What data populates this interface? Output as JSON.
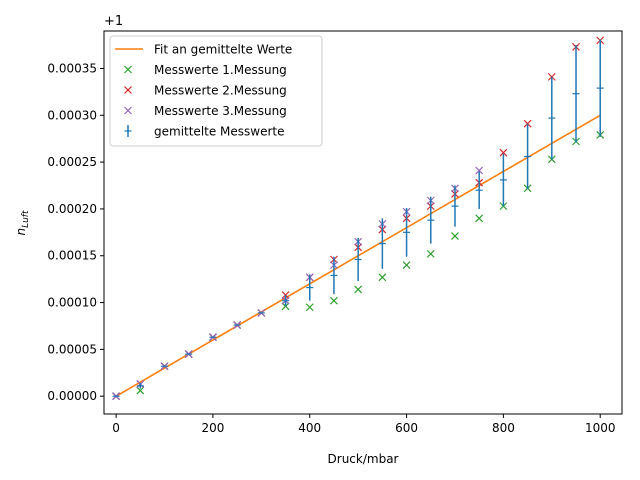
{
  "chart_data": {
    "type": "scatter",
    "title": "",
    "xlabel": "Druck/mbar",
    "ylabel_base": "n",
    "ylabel_sub": "Luft",
    "y_offset_label": "+1",
    "xlim": [
      -25,
      1045
    ],
    "ylim": [
      -1.9e-05,
      0.00039
    ],
    "x_ticks": [
      0,
      200,
      400,
      600,
      800,
      1000
    ],
    "x_tick_labels": [
      "0",
      "200",
      "400",
      "600",
      "800",
      "1000"
    ],
    "y_ticks": [
      0,
      5e-05,
      0.0001,
      0.00015,
      0.0002,
      0.00025,
      0.0003,
      0.00035
    ],
    "y_tick_labels": [
      "0.00000",
      "0.00005",
      "0.00010",
      "0.00015",
      "0.00020",
      "0.00025",
      "0.00030",
      "0.00035"
    ],
    "grid": false,
    "legend_position": "top-left",
    "fit": {
      "name": "Fit an gemittelte Werte",
      "color": "#ff7f0e",
      "x": [
        0,
        1000
      ],
      "y": [
        0.0,
        0.0003
      ]
    },
    "series": [
      {
        "name": "Messwerte 1.Messung",
        "color": "#2ca02c",
        "marker": "x",
        "x": [
          0,
          50,
          100,
          150,
          200,
          250,
          300,
          350,
          400,
          450,
          500,
          550,
          600,
          650,
          700,
          750,
          800,
          850,
          900,
          950,
          1000
        ],
        "y": [
          0.0,
          6e-06,
          3.2e-05,
          4.5e-05,
          6.3e-05,
          7.6e-05,
          8.9e-05,
          9.6e-05,
          9.5e-05,
          0.000102,
          0.000114,
          0.000127,
          0.00014,
          0.000152,
          0.000171,
          0.00019,
          0.000203,
          0.000222,
          0.000253,
          0.000272,
          0.000279
        ]
      },
      {
        "name": "Messwerte 2.Messung",
        "color": "#d62728",
        "marker": "x",
        "x": [
          0,
          50,
          100,
          150,
          200,
          250,
          300,
          350,
          400,
          450,
          500,
          550,
          600,
          650,
          700,
          750,
          800,
          850,
          900,
          950,
          1000
        ],
        "y": [
          0.0,
          1.3e-05,
          3.2e-05,
          4.5e-05,
          6.3e-05,
          7.6e-05,
          8.9e-05,
          0.000108,
          0.000127,
          0.000146,
          0.000159,
          0.000178,
          0.00019,
          0.000203,
          0.000216,
          0.000228,
          0.00026,
          0.000291,
          0.000341,
          0.000373,
          0.00038
        ]
      },
      {
        "name": "Messwerte 3.Messung",
        "color": "#9467bd",
        "marker": "x",
        "x": [
          0,
          50,
          100,
          150,
          200,
          250,
          300,
          350,
          400,
          450,
          500,
          550,
          600,
          650,
          700,
          750
        ],
        "y": [
          0.0,
          1.3e-05,
          3.2e-05,
          4.5e-05,
          6.3e-05,
          7.6e-05,
          8.9e-05,
          0.000102,
          0.000127,
          0.00014,
          0.000165,
          0.000184,
          0.000197,
          0.000209,
          0.000222,
          0.000241
        ]
      },
      {
        "name": "gemittelte Messwerte",
        "color": "#1f77b4",
        "marker": "errorbar",
        "x": [
          0,
          50,
          100,
          150,
          200,
          250,
          300,
          350,
          400,
          450,
          500,
          550,
          600,
          650,
          700,
          750,
          800,
          850,
          900,
          950,
          1000
        ],
        "y": [
          0.0,
          1.1e-05,
          3.2e-05,
          4.5e-05,
          6.3e-05,
          7.6e-05,
          8.9e-05,
          0.000102,
          0.000116,
          0.000129,
          0.000146,
          0.000163,
          0.000175,
          0.000188,
          0.000203,
          0.00022,
          0.000231,
          0.000256,
          0.000297,
          0.000323,
          0.000329
        ],
        "yerr": [
          0.0,
          3e-06,
          0.0,
          0.0,
          0.0,
          0.0,
          0.0,
          6e-06,
          1.4e-05,
          2e-05,
          2.3e-05,
          2.7e-05,
          2.6e-05,
          2.5e-05,
          2.2e-05,
          2e-05,
          2.8e-05,
          3.5e-05,
          4.4e-05,
          5.2e-05,
          5.2e-05
        ]
      }
    ]
  }
}
